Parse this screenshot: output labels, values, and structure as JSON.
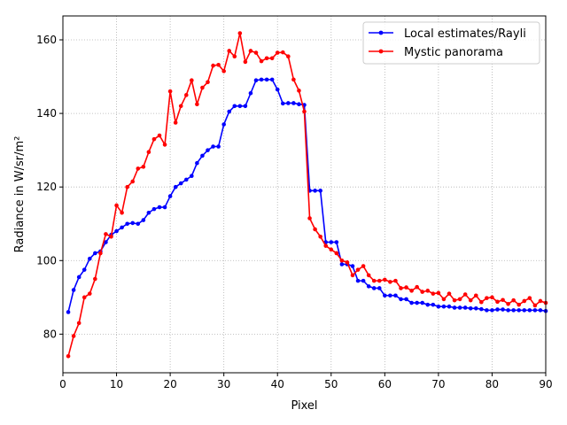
{
  "chart_data": {
    "type": "line",
    "title": "",
    "xlabel": "Pixel",
    "ylabel": "Radiance in W/sr/m²",
    "xlim": [
      0,
      90
    ],
    "ylim": [
      69.5,
      166.5
    ],
    "xticks": [
      0,
      10,
      20,
      30,
      40,
      50,
      60,
      70,
      80,
      90
    ],
    "yticks": [
      80,
      100,
      120,
      140,
      160
    ],
    "grid": true,
    "legend_position": "top-right",
    "series": [
      {
        "name": "Local estimates/Rayli",
        "color": "#0000ff",
        "x": [
          1,
          2,
          3,
          4,
          5,
          6,
          7,
          8,
          9,
          10,
          11,
          12,
          13,
          14,
          15,
          16,
          17,
          18,
          19,
          20,
          21,
          22,
          23,
          24,
          25,
          26,
          27,
          28,
          29,
          30,
          31,
          32,
          33,
          34,
          35,
          36,
          37,
          38,
          39,
          40,
          41,
          42,
          43,
          44,
          45,
          46,
          47,
          48,
          49,
          50,
          51,
          52,
          53,
          54,
          55,
          56,
          57,
          58,
          59,
          60,
          61,
          62,
          63,
          64,
          65,
          66,
          67,
          68,
          69,
          70,
          71,
          72,
          73,
          74,
          75,
          76,
          77,
          78,
          79,
          80,
          81,
          82,
          83,
          84,
          85,
          86,
          87,
          88,
          89,
          90
        ],
        "values": [
          86,
          92,
          95.5,
          97.5,
          100.5,
          102,
          102.5,
          105,
          107,
          108,
          109,
          110,
          110.2,
          110,
          111,
          113,
          114,
          114.5,
          114.5,
          117.5,
          120,
          121,
          122,
          123,
          126.5,
          128.5,
          130,
          131,
          131,
          137,
          140.5,
          142,
          142,
          142,
          145.5,
          149,
          149.2,
          149.2,
          149.2,
          146.5,
          142.7,
          142.8,
          142.8,
          142.5,
          142.3,
          119,
          119,
          119,
          105,
          105,
          105,
          99,
          99,
          98.5,
          94.5,
          94.5,
          93,
          92.5,
          92.5,
          90.5,
          90.5,
          90.5,
          89.5,
          89.5,
          88.5,
          88.5,
          88.5,
          88,
          88,
          87.5,
          87.5,
          87.5,
          87.2,
          87.2,
          87.2,
          87,
          87,
          86.8,
          86.5,
          86.5,
          86.7,
          86.7,
          86.5,
          86.5,
          86.5,
          86.5,
          86.5,
          86.5,
          86.5,
          86.3
        ]
      },
      {
        "name": "Mystic panorama",
        "color": "#ff0000",
        "x": [
          1,
          2,
          3,
          4,
          5,
          6,
          7,
          8,
          9,
          10,
          11,
          12,
          13,
          14,
          15,
          16,
          17,
          18,
          19,
          20,
          21,
          22,
          23,
          24,
          25,
          26,
          27,
          28,
          29,
          30,
          31,
          32,
          33,
          34,
          35,
          36,
          37,
          38,
          39,
          40,
          41,
          42,
          43,
          44,
          45,
          46,
          47,
          48,
          49,
          50,
          51,
          52,
          53,
          54,
          55,
          56,
          57,
          58,
          59,
          60,
          61,
          62,
          63,
          64,
          65,
          66,
          67,
          68,
          69,
          70,
          71,
          72,
          73,
          74,
          75,
          76,
          77,
          78,
          79,
          80,
          81,
          82,
          83,
          84,
          85,
          86,
          87,
          88,
          89,
          90
        ],
        "values": [
          74,
          79.5,
          83,
          90,
          91,
          95,
          102,
          107.2,
          106.5,
          115,
          113,
          120,
          121.5,
          125,
          125.5,
          129.5,
          133,
          134,
          131.5,
          146,
          137.5,
          142,
          145,
          149,
          142.5,
          147,
          148.5,
          153,
          153.2,
          151.5,
          157,
          155.5,
          161.8,
          154,
          157,
          156.5,
          154.2,
          155,
          155,
          156.5,
          156.6,
          155.5,
          149.2,
          146.2,
          140.5,
          111.5,
          108.5,
          106.5,
          104,
          103,
          102,
          100,
          99.5,
          96,
          97.5,
          98.5,
          96,
          94.5,
          94.5,
          94.8,
          94.2,
          94.5,
          92.5,
          92.7,
          91.8,
          92.8,
          91.5,
          91.8,
          91,
          91.2,
          89.5,
          91,
          89.2,
          89.5,
          90.8,
          89.2,
          90.5,
          88.7,
          89.8,
          90,
          88.8,
          89.3,
          88.2,
          89.2,
          88,
          89,
          89.8,
          87.8,
          89,
          88.5
        ]
      }
    ]
  }
}
